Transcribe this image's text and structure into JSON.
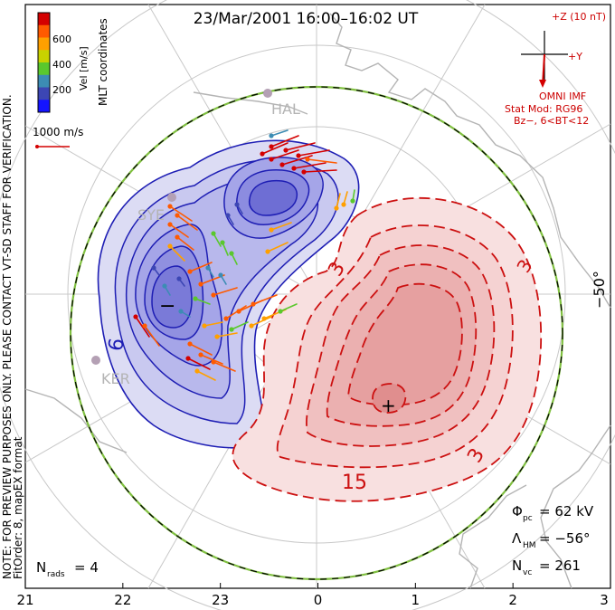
{
  "chart_data": {
    "type": "contour",
    "title": "23/Mar/2001  16:00–16:02  UT",
    "coord_label": "MLT coordinates",
    "fit_order_label": "FitOrder: 8, mapEX format",
    "preview_note": "NOTE: FOR PREVIEW PURPOSES ONLY. PLEASE CONTACT VT-SD STAFF FOR VERIFICATION.",
    "colorbar": {
      "label": "Vel [m/s]",
      "ticks": [
        "600",
        "400",
        "200"
      ],
      "colors": [
        "#d40000",
        "#ff5a00",
        "#ffa000",
        "#c8d200",
        "#5ac82d",
        "#3c8cb4",
        "#3c46b4",
        "#1414ff"
      ]
    },
    "scale_vector_label": "1000 m/s",
    "imf": {
      "top_label": "+Z (10 nT)",
      "right_label": "+Y",
      "omni_label": "OMNI IMF",
      "stat_mod": "Stat Mod: RG96",
      "condition": "Bz−, 6<BT<12"
    },
    "stations": [
      "HAL",
      "SYE",
      "KER"
    ],
    "latitude_label": "−50°",
    "mlt_ticks": [
      "21",
      "22",
      "23",
      "0",
      "1",
      "2",
      "3"
    ],
    "contour_labels": [
      "6",
      "3",
      "15",
      "3",
      "3"
    ],
    "extrema": {
      "min_symbol": "−",
      "max_symbol": "+"
    },
    "stats": {
      "phi_pc": {
        "symbol": "Φ",
        "sub": "pc",
        "value": "=  62 kV"
      },
      "lambda_hm": {
        "symbol": "Λ",
        "sub": "HM",
        "value": "=  −56°"
      },
      "n_vc": {
        "symbol": "N",
        "sub": "vc",
        "value": "=  261"
      },
      "n_rads": {
        "symbol": "N",
        "sub": "rads",
        "value": "=  4"
      }
    },
    "potential_colors": {
      "negative": "#1e1eb4",
      "positive": "#cc1010"
    }
  }
}
